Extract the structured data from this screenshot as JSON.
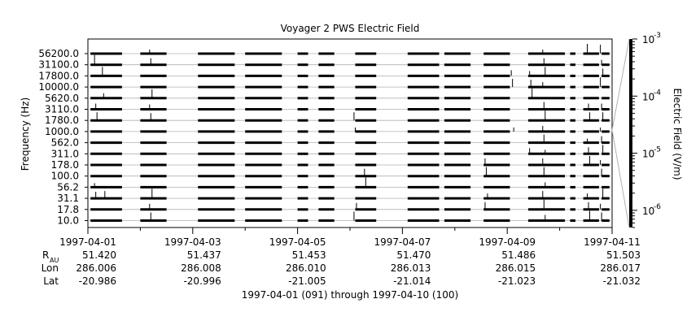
{
  "chart_data": {
    "type": "line",
    "title": "Voyager 2 PWS Electric Field",
    "ylabel": "Frequency (Hz)",
    "colorbar_label": "Electric Field (V/m)",
    "colorbar_ticks": [
      {
        "mantissa": "10",
        "exponent": "-3",
        "value": 0.001
      },
      {
        "mantissa": "10",
        "exponent": "-4",
        "value": 0.0001
      },
      {
        "mantissa": "10",
        "exponent": "-5",
        "value": 1e-05
      },
      {
        "mantissa": "10",
        "exponent": "-6",
        "value": 1e-06
      }
    ],
    "colorbar_range": [
      5e-07,
      0.001
    ],
    "channels": [
      "56200.0",
      "31100.0",
      "17800.0",
      "10000.0",
      "5620.0",
      "3110.0",
      "1780.0",
      "1000.0",
      "562.0",
      "311.0",
      "178.0",
      "100.0",
      "56.2",
      "31.1",
      "17.8",
      "10.0"
    ],
    "x_range": [
      "1997-04-01",
      "1997-04-11"
    ],
    "x_ticks": [
      "1997-04-01",
      "1997-04-03",
      "1997-04-05",
      "1997-04-07",
      "1997-04-09",
      "1997-04-11"
    ],
    "data_segments_days": [
      [
        0.05,
        0.65
      ],
      [
        1.0,
        1.5
      ],
      [
        2.1,
        2.8
      ],
      [
        3.0,
        3.7
      ],
      [
        4.0,
        4.2
      ],
      [
        4.4,
        4.7
      ],
      [
        5.1,
        5.5
      ],
      [
        6.1,
        6.7
      ],
      [
        6.8,
        7.3
      ],
      [
        7.55,
        8.05
      ],
      [
        8.4,
        9.1
      ],
      [
        9.2,
        9.3
      ],
      [
        9.45,
        9.75
      ],
      [
        9.8,
        9.95
      ]
    ],
    "bursts": [
      {
        "day": 1.2,
        "channels": [
          0,
          1,
          4,
          5,
          6,
          13,
          14,
          15
        ]
      },
      {
        "day": 0.15,
        "channels": [
          1,
          5,
          6,
          12,
          13
        ]
      },
      {
        "day": 0.3,
        "channels": [
          2,
          4,
          13
        ]
      },
      {
        "day": 5.1,
        "channels": [
          6,
          7,
          14,
          15
        ]
      },
      {
        "day": 5.3,
        "channels": [
          11,
          12
        ]
      },
      {
        "day": 7.6,
        "channels": [
          10,
          11,
          13,
          14
        ]
      },
      {
        "day": 8.1,
        "channels": [
          2,
          3,
          7
        ]
      },
      {
        "day": 8.45,
        "channels": [
          2,
          3,
          4,
          9
        ]
      },
      {
        "day": 8.7,
        "channels": [
          0,
          1,
          2,
          3,
          5,
          6,
          7,
          8,
          9,
          10,
          11,
          12,
          13,
          14,
          15
        ]
      },
      {
        "day": 9.55,
        "channels": [
          0,
          5,
          6,
          8,
          9,
          10,
          13,
          14,
          15
        ]
      },
      {
        "day": 9.8,
        "channels": [
          0,
          1,
          2,
          3,
          5,
          6,
          7,
          8,
          9,
          10,
          11,
          13,
          14,
          15
        ]
      }
    ],
    "ephemeris": {
      "rows": [
        {
          "label": "R",
          "sub": "AU",
          "values": [
            "51.420",
            "51.437",
            "51.453",
            "51.470",
            "51.486",
            "51.503"
          ]
        },
        {
          "label": "Lon",
          "sub": "",
          "values": [
            "286.006",
            "286.008",
            "286.010",
            "286.013",
            "286.015",
            "286.017"
          ]
        },
        {
          "label": "Lat",
          "sub": "",
          "values": [
            "-20.986",
            "-20.996",
            "-21.005",
            "-21.014",
            "-21.023",
            "-21.032"
          ]
        }
      ]
    },
    "footer": "1997-04-01 (091) through 1997-04-10 (100)"
  }
}
